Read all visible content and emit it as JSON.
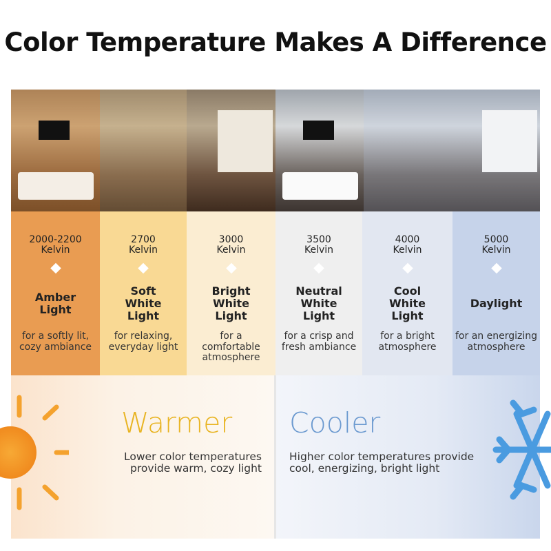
{
  "title": "Color Temperature Makes A Difference",
  "columns": [
    {
      "kelvin": "2000-2200",
      "unit": "Kelvin",
      "name": "Amber Light",
      "desc": "for a softly lit, cozy ambiance",
      "color": "#e99c52"
    },
    {
      "kelvin": "2700",
      "unit": "Kelvin",
      "name": "Soft White Light",
      "desc": "for relaxing, everyday light",
      "color": "#f9d994"
    },
    {
      "kelvin": "3000",
      "unit": "Kelvin",
      "name": "Bright White Light",
      "desc": "for a comfortable atmosphere",
      "color": "#fbedd2"
    },
    {
      "kelvin": "3500",
      "unit": "Kelvin",
      "name": "Neutral White Light",
      "desc": "for a crisp and fresh ambiance",
      "color": "#efefef"
    },
    {
      "kelvin": "4000",
      "unit": "Kelvin",
      "name": "Cool White Light",
      "desc": "for a bright atmosphere",
      "color": "#e2e7f1"
    },
    {
      "kelvin": "5000",
      "unit": "Kelvin",
      "name": "Daylight",
      "desc": "for an energizing atmosphere",
      "color": "#c6d3ea"
    }
  ],
  "warmer": {
    "title": "Warmer",
    "text": "Lower color temperatures provide warm, cozy light",
    "color": "#e8b422",
    "icon": "sun-icon"
  },
  "cooler": {
    "title": "Cooler",
    "text": "Higher color temperatures provide cool, energizing, bright light",
    "color": "#6c9ad0",
    "icon": "snowflake-icon"
  }
}
